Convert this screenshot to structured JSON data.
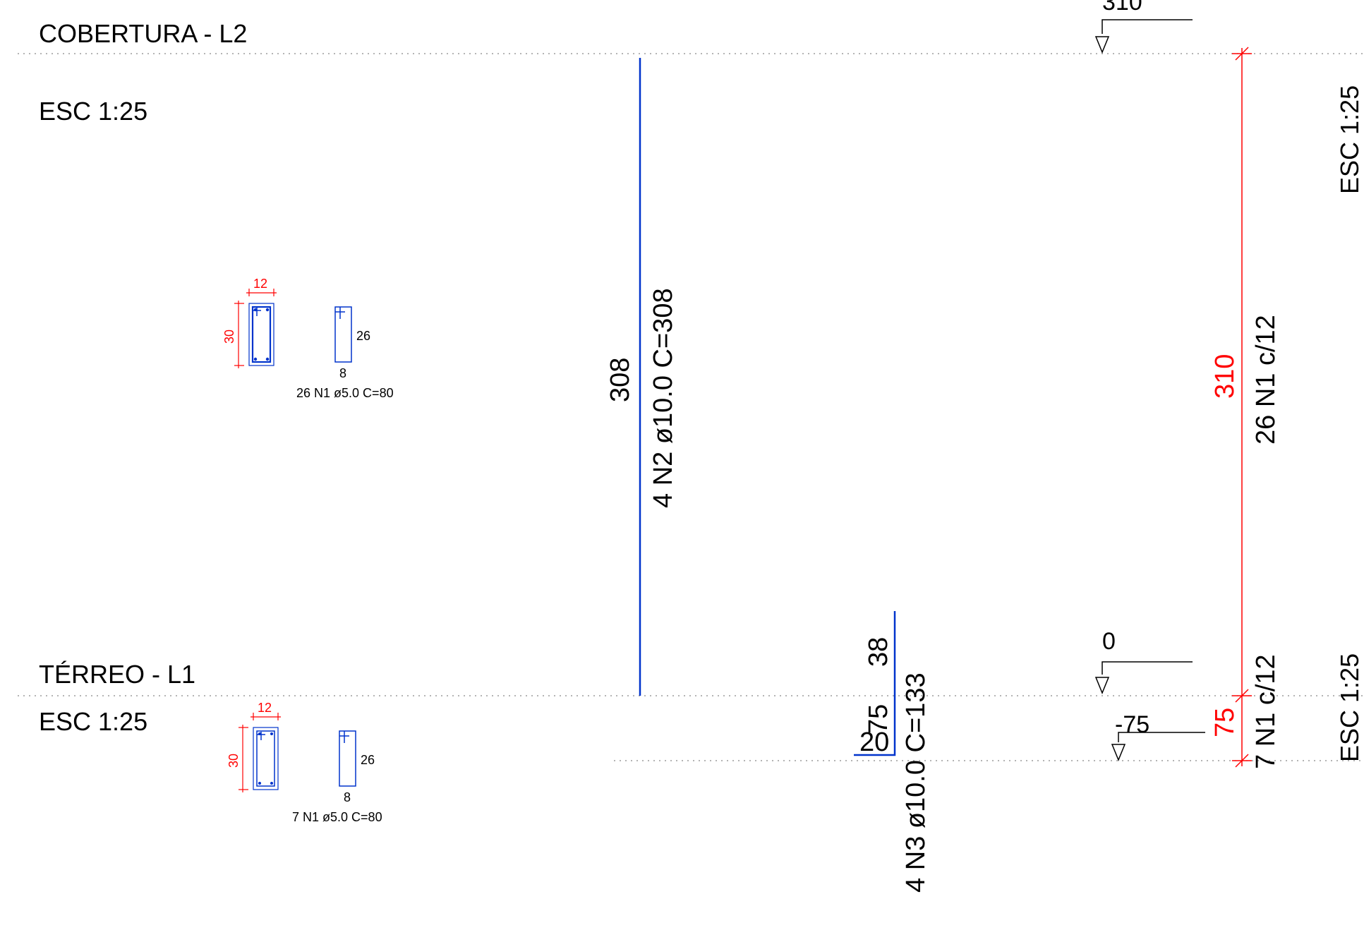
{
  "colors": {
    "ink": "#000000",
    "rebar": "#0033cc",
    "dimension": "#ff0000",
    "grid": "#888888"
  },
  "levels": {
    "top": {
      "label": "COBERTURA - L2",
      "scale": "ESC 1:25"
    },
    "ground": {
      "label": "TÉRREO - L1",
      "scale": "ESC 1:25"
    }
  },
  "side_scales": {
    "upper": "ESC 1:25",
    "lower": "ESC 1:25"
  },
  "elevation_marks": {
    "top": "310",
    "ground": "0",
    "foundation": "-75"
  },
  "bars": {
    "n2": {
      "length": "308",
      "description": "4 N2 ø10.0  C=308"
    },
    "n3": {
      "segment_vertical_upper": "38",
      "segment_vertical_lower": "75",
      "segment_hook": "20",
      "description": "4 N3 ø10.0  C=133"
    }
  },
  "stirrup_dims": {
    "upper": {
      "total_height": "310",
      "spacing": "26 N1 c/12"
    },
    "lower": {
      "total_height": "75",
      "spacing": "7 N1 c/12"
    }
  },
  "sections": {
    "upper": {
      "width": "12",
      "height": "30",
      "stirrup_height": "26",
      "stirrup_width": "8",
      "stirrup_label": "26 N1 ø5.0  C=80"
    },
    "lower": {
      "width": "12",
      "height": "30",
      "stirrup_height": "26",
      "stirrup_width": "8",
      "stirrup_label": "7 N1 ø5.0  C=80"
    }
  }
}
